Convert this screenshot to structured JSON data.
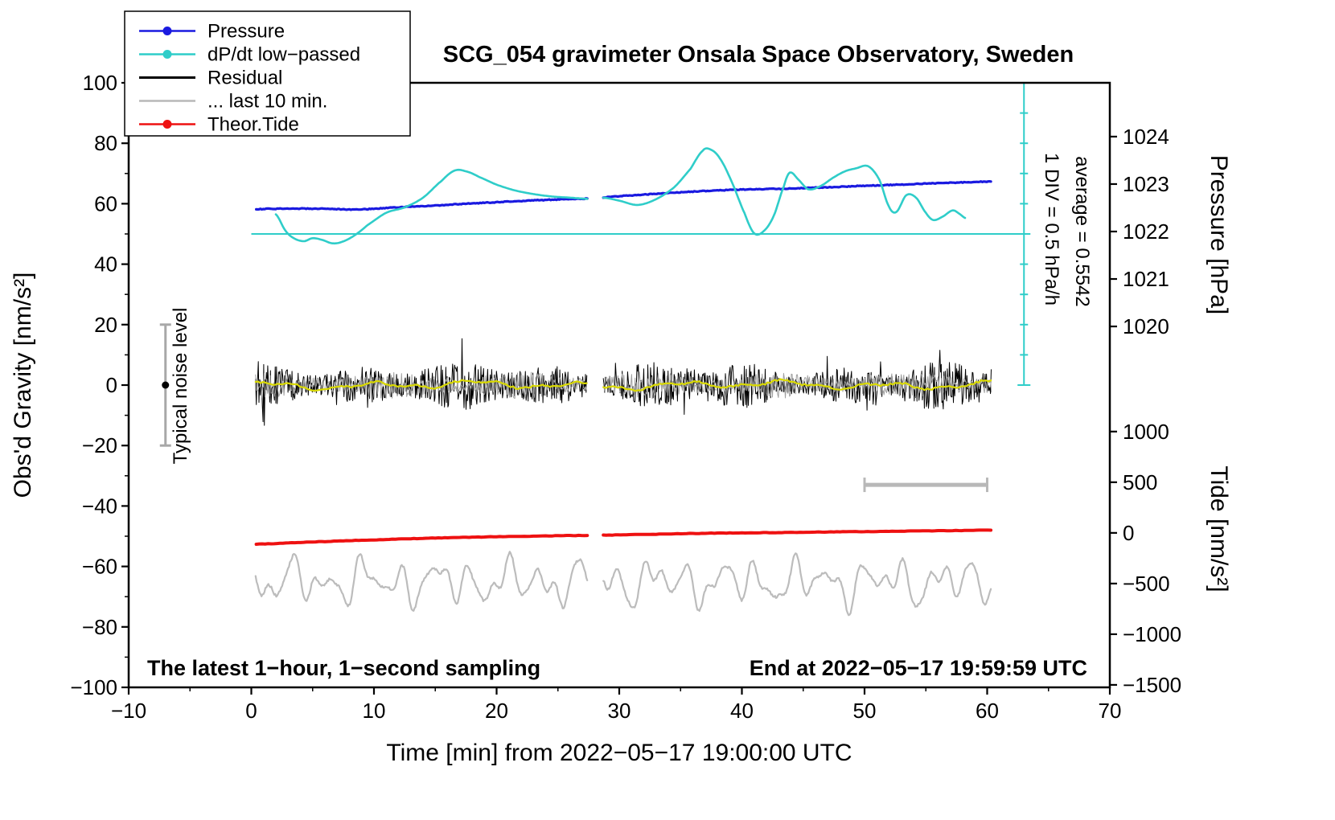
{
  "page": {
    "background": "#ffffff"
  },
  "chart_data": {
    "type": "line",
    "title": "SCG_054 gravimeter Onsala Space Observatory, Sweden",
    "xlabel": "Time [min] from 2022−05−17 19:00:00 UTC",
    "ylabel_left": "Obs'd Gravity [nm/s²]",
    "ylabel_pressure": "Pressure [hPa]",
    "ylabel_tide": "Tide [nm/s²]",
    "footer_left": "The latest 1−hour, 1−second sampling",
    "footer_right": "End at 2022−05−17 19:59:59 UTC",
    "side_note_div": "1 DIV = 0.5 hPa/h",
    "side_note_avg": "average = 0.5542",
    "noise_note": "Typical noise level",
    "x_range": [
      -10,
      70
    ],
    "y_range": [
      -100,
      100
    ],
    "x_axis": {
      "tick_values": [
        -10,
        0,
        10,
        20,
        30,
        40,
        50,
        60,
        70
      ],
      "tick_labels": [
        "−10",
        "0",
        "10",
        "20",
        "30",
        "40",
        "50",
        "60",
        "70"
      ],
      "minor_step": 5
    },
    "y_axis_left": {
      "tick_values": [
        -100,
        -80,
        -60,
        -40,
        -20,
        0,
        20,
        40,
        60,
        80,
        100
      ],
      "tick_labels": [
        "−100",
        "−80",
        "−60",
        "−40",
        "−20",
        "0",
        "20",
        "40",
        "60",
        "80",
        "100"
      ],
      "minor_step": 10
    },
    "pressure_axis": {
      "tick_values": [
        1020,
        1021,
        1022,
        1023,
        1024
      ],
      "tick_labels": [
        "1020",
        "1021",
        "1022",
        "1023",
        "1024"
      ],
      "u_at_1022": 50.8,
      "u_per_hpa": 15.7
    },
    "tide_axis": {
      "tick_values": [
        -1500,
        -1000,
        -500,
        0,
        500,
        1000
      ],
      "tick_labels": [
        "−1500",
        "−1000",
        "−500",
        "0",
        "500",
        "1000"
      ],
      "u_at_0": -48.9,
      "u_per_unit": 0.03352
    },
    "legend": [
      {
        "label": "Pressure",
        "color": "#1a1ae0",
        "marker": "dot"
      },
      {
        "label": "dP/dt low−passed",
        "color": "#2fcdc9",
        "marker": "dot"
      },
      {
        "label": "Residual",
        "color": "#000000",
        "marker": "line"
      },
      {
        "label": "... last 10 min.",
        "color": "#b8b8b8",
        "marker": "line"
      },
      {
        "label": "Theor.Tide",
        "color": "#ee1111",
        "marker": "dot"
      }
    ],
    "noise_seed": 987123,
    "series": {
      "pressure": {
        "color": "#1a1ae0",
        "width": 3.2,
        "jitter": 0.13,
        "dt": 0.12,
        "segments": [
          [
            [
              0.4,
              58.2
            ],
            [
              2,
              58.35
            ],
            [
              4,
              58.4
            ],
            [
              6,
              58.3
            ],
            [
              8,
              58.1
            ],
            [
              9.5,
              58.2
            ],
            [
              11,
              58.6
            ],
            [
              13,
              59.0
            ],
            [
              15,
              59.4
            ],
            [
              17,
              59.9
            ],
            [
              19,
              60.3
            ],
            [
              21,
              60.7
            ],
            [
              23,
              61.1
            ],
            [
              25,
              61.4
            ],
            [
              27.4,
              61.7
            ]
          ],
          [
            [
              28.7,
              62.1
            ],
            [
              30,
              62.5
            ],
            [
              32,
              63.0
            ],
            [
              34,
              63.5
            ],
            [
              36,
              64.0
            ],
            [
              38,
              64.4
            ],
            [
              40,
              64.7
            ],
            [
              42,
              64.85
            ],
            [
              44,
              65.0
            ],
            [
              46,
              65.3
            ],
            [
              48,
              65.6
            ],
            [
              50,
              65.95
            ],
            [
              52,
              66.2
            ],
            [
              54,
              66.5
            ],
            [
              56,
              66.8
            ],
            [
              58,
              67.05
            ],
            [
              60.3,
              67.35
            ]
          ]
        ]
      },
      "dpdt": {
        "color": "#2fcdc9",
        "width": 2.6,
        "jitter": 0,
        "dt": 0.1,
        "segments": [
          [
            [
              2,
              56.5
            ],
            [
              2.8,
              51
            ],
            [
              3.5,
              48.5
            ],
            [
              4.3,
              47.6
            ],
            [
              5,
              48.6
            ],
            [
              5.8,
              48
            ],
            [
              6.6,
              46.9
            ],
            [
              7.4,
              47.4
            ],
            [
              8.4,
              49.5
            ],
            [
              9.5,
              53
            ],
            [
              11,
              57
            ],
            [
              12.5,
              58.8
            ],
            [
              14,
              62
            ],
            [
              15.5,
              67.5
            ],
            [
              16.6,
              71
            ],
            [
              17.6,
              70.6
            ],
            [
              18.6,
              68.8
            ],
            [
              20,
              66.3
            ],
            [
              21.5,
              64.4
            ],
            [
              23,
              63.2
            ],
            [
              24.5,
              62.4
            ],
            [
              26,
              62
            ],
            [
              27.4,
              61.6
            ]
          ],
          [
            [
              28.7,
              62
            ],
            [
              30,
              61
            ],
            [
              31.5,
              59.6
            ],
            [
              33,
              61.5
            ],
            [
              34.5,
              65.5
            ],
            [
              35.8,
              71.5
            ],
            [
              36.8,
              77.5
            ],
            [
              37.4,
              78
            ],
            [
              38.2,
              75
            ],
            [
              39.2,
              67
            ],
            [
              40.2,
              57
            ],
            [
              41,
              50.2
            ],
            [
              41.8,
              51
            ],
            [
              42.6,
              56
            ],
            [
              43.4,
              65.5
            ],
            [
              43.9,
              70.3
            ],
            [
              44.6,
              68
            ],
            [
              45.4,
              64.8
            ],
            [
              46.4,
              65.8
            ],
            [
              47.4,
              68.5
            ],
            [
              48.4,
              70.7
            ],
            [
              49.3,
              71.7
            ],
            [
              50.3,
              72.4
            ],
            [
              51.2,
              68
            ],
            [
              52,
              59
            ],
            [
              52.6,
              57.3
            ],
            [
              53.4,
              62.8
            ],
            [
              54.2,
              62
            ],
            [
              55,
              57
            ],
            [
              55.6,
              54.6
            ],
            [
              56.4,
              55.8
            ],
            [
              57.2,
              57.8
            ],
            [
              57.8,
              56.5
            ],
            [
              58.2,
              55.3
            ]
          ]
        ]
      },
      "theor_tide": {
        "color": "#ee1111",
        "width": 4,
        "jitter": 0.07,
        "dt": 0.25,
        "segments": [
          [
            [
              0.4,
              -52.6
            ],
            [
              5,
              -51.9
            ],
            [
              10,
              -51.2
            ],
            [
              15,
              -50.6
            ],
            [
              20,
              -50.15
            ],
            [
              25,
              -49.85
            ],
            [
              27.4,
              -49.75
            ]
          ],
          [
            [
              28.7,
              -49.65
            ],
            [
              32,
              -49.4
            ],
            [
              36,
              -49.1
            ],
            [
              40,
              -48.9
            ],
            [
              44,
              -48.75
            ],
            [
              48,
              -48.55
            ],
            [
              52,
              -48.4
            ],
            [
              56,
              -48.2
            ],
            [
              60.3,
              -48.0
            ]
          ]
        ]
      },
      "residual": {
        "color": "#000000",
        "width": 1,
        "dt": 0.055,
        "amp_base": 5.6,
        "amp_harmonics": [
          [
            1.7,
            0.8,
            0.7
          ],
          [
            1.2,
            0.33,
            2.1
          ]
        ],
        "amp_min": 3.0,
        "spike_prob": 0.03,
        "windows": [
          [
            0.35,
            27.4
          ],
          [
            28.7,
            60.35
          ]
        ]
      },
      "residual_recent": {
        "color": "#a0a0a0",
        "width": 1,
        "dt": 0.07,
        "amp_base": 3.4,
        "amp_harmonics": [
          [
            1.1,
            0.6,
            1.0
          ]
        ],
        "amp_min": 2.0,
        "spike_prob": 0,
        "windows": [
          [
            0.35,
            27.4
          ],
          [
            28.7,
            60.35
          ]
        ]
      },
      "residual_smooth": {
        "color": "#d9d900",
        "width": 2.2,
        "dt": 0.2,
        "base": 0,
        "harmonics": [
          [
            0.9,
            0.75,
            0.4
          ],
          [
            0.5,
            1.9,
            1.2
          ],
          [
            0.45,
            0.27,
            3.0
          ]
        ],
        "jitter": 0.3,
        "windows": [
          [
            0.35,
            27.4
          ],
          [
            28.7,
            60.35
          ]
        ]
      },
      "gray_oscillation": {
        "color": "#bcbcbc",
        "width": 2.2,
        "dt": 0.08,
        "base": -65.2,
        "harmonics": [
          [
            4.2,
            2.15,
            0.8
          ],
          [
            3.1,
            3.53,
            2.0
          ],
          [
            2.4,
            1.05,
            4.1
          ],
          [
            1.5,
            5.1,
            1.1
          ]
        ],
        "jitter": 0.4,
        "windows": [
          [
            0.35,
            27.4
          ],
          [
            28.7,
            60.35
          ]
        ]
      }
    },
    "references": {
      "dpdt_zero_line": {
        "u": 50,
        "t1": 0,
        "t2": 63,
        "color": "#2fcdc9",
        "width": 2
      },
      "dpdt_scale_bar": {
        "t": 63,
        "u1": 0,
        "u2": 100,
        "tick_step": 10,
        "color": "#2fcdc9",
        "width": 2
      },
      "recent_window_bar": {
        "u": -33,
        "t1": 50,
        "t2": 60,
        "color": "#b8b8b8",
        "width": 5
      },
      "noise_level_bar": {
        "t": -7,
        "u1": -20,
        "u2": 20,
        "color": "#a8a8a8",
        "width": 3,
        "dot_color": "#000000"
      }
    }
  }
}
